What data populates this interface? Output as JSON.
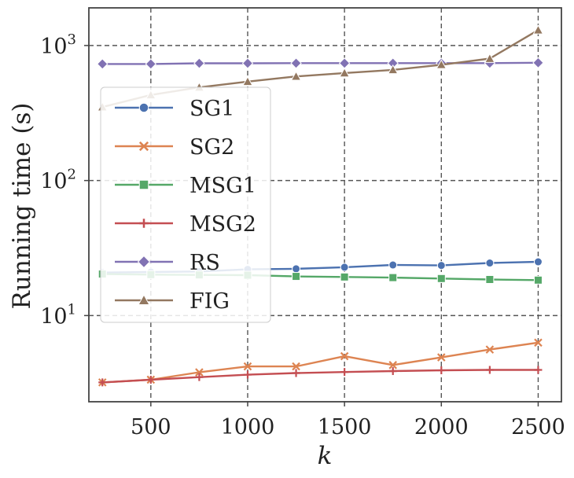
{
  "chart_data": {
    "type": "line",
    "xlabel": "k",
    "ylabel": "Running time (s)",
    "yscale": "log",
    "xlim": [
      180,
      2620
    ],
    "ylim": [
      2.3,
      1900
    ],
    "xticks": [
      500,
      1000,
      1500,
      2000,
      2500
    ],
    "xtick_labels": [
      "500",
      "1000",
      "1500",
      "2000",
      "2500"
    ],
    "yticks": [
      10,
      100,
      1000
    ],
    "ytick_labels": [
      {
        "base": "10",
        "exp": "1"
      },
      {
        "base": "10",
        "exp": "2"
      },
      {
        "base": "10",
        "exp": "3"
      }
    ],
    "grid": true,
    "legend_position": "center-left",
    "x": [
      250,
      500,
      750,
      1000,
      1250,
      1500,
      1750,
      2000,
      2250,
      2500
    ],
    "series": [
      {
        "name": "SG1",
        "marker": "circle",
        "color": "#4c72b0",
        "values": [
          20.8,
          21.0,
          21.2,
          22.0,
          22.2,
          22.8,
          23.7,
          23.5,
          24.5,
          25.0
        ]
      },
      {
        "name": "SG2",
        "marker": "x",
        "color": "#dd8452",
        "values": [
          3.2,
          3.35,
          3.8,
          4.2,
          4.2,
          5.0,
          4.3,
          4.9,
          5.6,
          6.3
        ]
      },
      {
        "name": "MSG1",
        "marker": "square",
        "color": "#55a868",
        "values": [
          20.3,
          20.1,
          20.0,
          19.9,
          19.5,
          19.3,
          19.1,
          18.8,
          18.5,
          18.3
        ]
      },
      {
        "name": "MSG2",
        "marker": "plus",
        "color": "#c44e52",
        "values": [
          3.2,
          3.35,
          3.5,
          3.65,
          3.75,
          3.82,
          3.88,
          3.93,
          3.96,
          3.96
        ]
      },
      {
        "name": "RS",
        "marker": "diamond",
        "color": "#8172b3",
        "values": [
          730,
          730,
          738,
          738,
          740,
          740,
          740,
          740,
          740,
          745
        ]
      },
      {
        "name": "FIG",
        "marker": "triangle",
        "color": "#937860",
        "values": [
          350,
          430,
          490,
          540,
          590,
          625,
          660,
          720,
          800,
          1300
        ]
      }
    ]
  }
}
